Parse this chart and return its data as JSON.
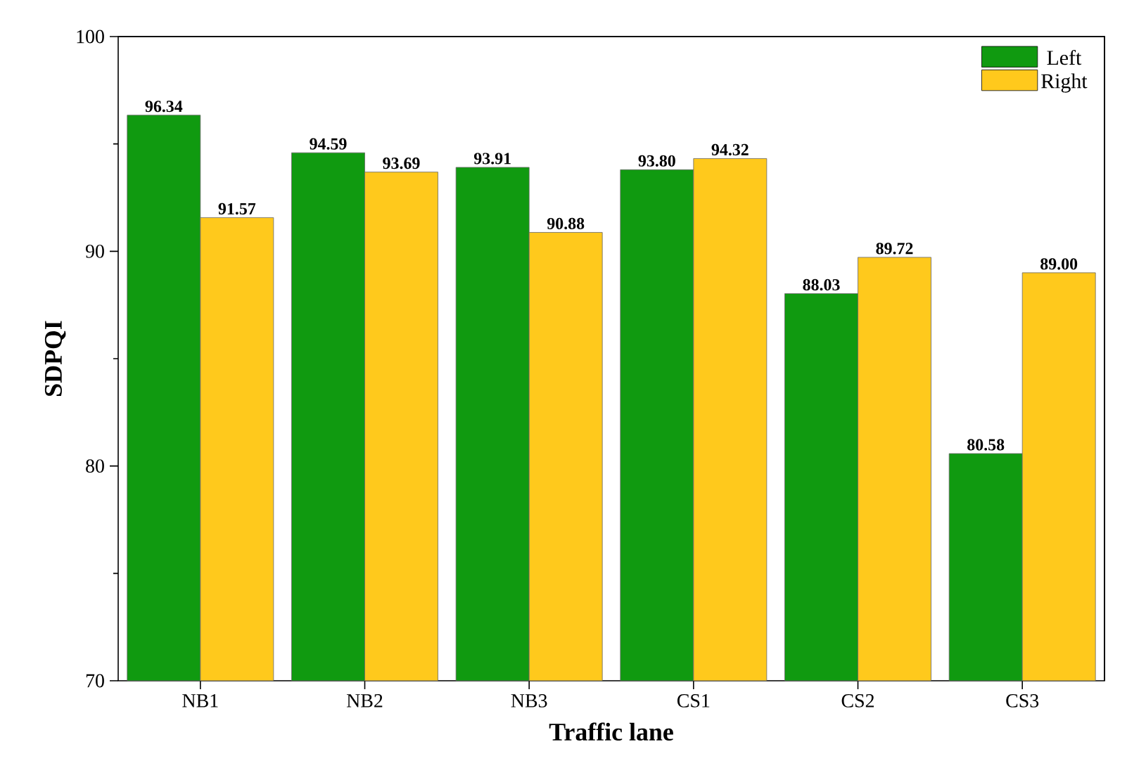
{
  "chart_data": {
    "type": "bar",
    "xlabel": "Traffic lane",
    "ylabel": "SDPQI",
    "categories": [
      "NB1",
      "NB2",
      "NB3",
      "CS1",
      "CS2",
      "CS3"
    ],
    "series": [
      {
        "name": "Left",
        "color": "#109a10",
        "values": [
          96.34,
          94.59,
          93.91,
          93.8,
          88.03,
          80.58
        ],
        "value_labels": [
          "96.34",
          "94.59",
          "93.91",
          "93.80",
          "88.03",
          "80.58"
        ]
      },
      {
        "name": "Right",
        "color": "#ffc91c",
        "values": [
          91.57,
          93.69,
          90.88,
          94.32,
          89.72,
          89.0
        ],
        "value_labels": [
          "91.57",
          "93.69",
          "90.88",
          "94.32",
          "89.72",
          "89.00"
        ]
      }
    ],
    "ylim": [
      70,
      100
    ],
    "yticks": [
      70,
      80,
      90,
      100
    ],
    "legend": "top right",
    "grid": false
  }
}
